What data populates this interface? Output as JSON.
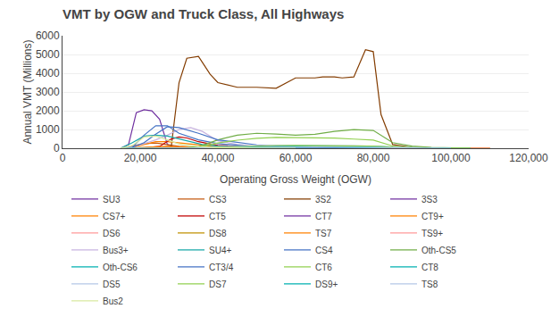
{
  "chart_data": {
    "type": "line",
    "title": "VMT by OGW and Truck Class, All Highways",
    "xlabel": "Operating Gross Weight (OGW)",
    "ylabel": "Annual VMT (Millions)",
    "xlim": [
      0,
      120000
    ],
    "ylim": [
      0,
      6000
    ],
    "xticks": [
      0,
      {
        "value": 20000,
        "label": "20,000"
      },
      {
        "value": 40000,
        "label": "40,000"
      },
      {
        "value": 60000,
        "label": "60,000"
      },
      {
        "value": 80000,
        "label": "80,000"
      },
      {
        "value": 100000,
        "label": "100,000"
      },
      {
        "value": 120000,
        "label": "120,000"
      }
    ],
    "yticks": [
      0,
      1000,
      2000,
      3000,
      4000,
      5000,
      6000
    ],
    "grid": "y",
    "legend": "bottom",
    "series": [
      {
        "name": "SU3",
        "color": "#7030A0",
        "x": [
          15000,
          17000,
          19000,
          21000,
          23000,
          25000,
          27000,
          29000,
          31000,
          35000,
          40000,
          50000
        ],
        "values": [
          0,
          200,
          1900,
          2050,
          2000,
          1550,
          200,
          50,
          20,
          5,
          0,
          0
        ]
      },
      {
        "name": "CS3",
        "color": "#C55A11",
        "x": [
          15000,
          18000,
          21000,
          24000,
          27000,
          30000,
          35000,
          40000,
          50000
        ],
        "values": [
          0,
          120,
          250,
          280,
          200,
          100,
          30,
          10,
          0
        ]
      },
      {
        "name": "3S2",
        "color": "#833C00",
        "x": [
          15000,
          20000,
          25000,
          28000,
          30000,
          32000,
          35000,
          38000,
          40000,
          45000,
          50000,
          55000,
          60000,
          65000,
          67000,
          70000,
          72000,
          75000,
          78000,
          80000,
          82000,
          85000,
          90000,
          95000,
          100000,
          105000,
          110000
        ],
        "values": [
          0,
          0,
          0,
          100,
          3500,
          4800,
          4900,
          3950,
          3500,
          3250,
          3250,
          3200,
          3750,
          3750,
          3800,
          3800,
          3750,
          3800,
          5250,
          5150,
          1800,
          200,
          50,
          20,
          10,
          5,
          0
        ]
      },
      {
        "name": "3S3",
        "color": "#7030A0",
        "x": [
          15000,
          25000,
          35000,
          50000,
          80000,
          90000,
          100000
        ],
        "values": [
          0,
          0,
          5,
          10,
          15,
          5,
          0
        ]
      },
      {
        "name": "CS7+",
        "color": "#FF8000",
        "x": [
          15000,
          18000,
          21000,
          24000,
          27000,
          30000,
          35000,
          40000,
          50000,
          60000,
          70000
        ],
        "values": [
          0,
          50,
          200,
          350,
          350,
          280,
          180,
          80,
          20,
          5,
          0
        ]
      },
      {
        "name": "CT5",
        "color": "#C00000",
        "x": [
          15000,
          20000,
          25000,
          28000,
          30000,
          32000,
          35000,
          40000,
          50000,
          60000,
          70000,
          80000,
          90000,
          100000
        ],
        "values": [
          0,
          0,
          100,
          500,
          600,
          550,
          350,
          150,
          60,
          30,
          15,
          8,
          3,
          0
        ]
      },
      {
        "name": "CT7",
        "color": "#7030A0",
        "x": [
          15000,
          25000,
          35000,
          50000,
          80000,
          90000
        ],
        "values": [
          0,
          0,
          20,
          10,
          5,
          0
        ]
      },
      {
        "name": "CT9+",
        "color": "#FF8000",
        "x": [
          15000,
          25000,
          35000,
          50000,
          80000,
          90000
        ],
        "values": [
          0,
          0,
          20,
          10,
          5,
          0
        ]
      },
      {
        "name": "DS6",
        "color": "#FF9999",
        "x": [
          15000,
          18000,
          21000,
          24000,
          27000,
          30000,
          35000,
          40000,
          50000,
          60000,
          70000,
          80000,
          90000,
          100000,
          110000
        ],
        "values": [
          0,
          20,
          60,
          80,
          70,
          55,
          40,
          30,
          20,
          15,
          10,
          8,
          5,
          2,
          0
        ]
      },
      {
        "name": "DS8",
        "color": "#BF9000",
        "x": [
          15000,
          18000,
          21000,
          24000,
          27000,
          30000,
          35000,
          40000,
          50000,
          60000,
          70000,
          80000,
          90000,
          100000,
          110000
        ],
        "values": [
          0,
          10,
          30,
          50,
          55,
          50,
          35,
          25,
          15,
          10,
          8,
          5,
          3,
          1,
          0
        ]
      },
      {
        "name": "TS7",
        "color": "#FF8000",
        "x": [
          15000,
          18000,
          21000,
          24000,
          27000,
          30000,
          35000,
          40000,
          50000,
          60000,
          70000,
          80000,
          90000,
          100000,
          110000
        ],
        "values": [
          0,
          20,
          60,
          90,
          100,
          80,
          60,
          40,
          25,
          15,
          10,
          5,
          3,
          1,
          0
        ]
      },
      {
        "name": "TS9+",
        "color": "#FF9999",
        "x": [
          15000,
          18000,
          21000,
          24000,
          27000,
          30000,
          35000,
          40000,
          50000,
          60000,
          70000,
          80000,
          90000,
          100000,
          110000
        ],
        "values": [
          0,
          5,
          20,
          35,
          40,
          30,
          20,
          15,
          10,
          8,
          5,
          3,
          2,
          1,
          0
        ]
      },
      {
        "name": "Bus3+",
        "color": "#C8B4E0",
        "x": [
          15000,
          18000,
          21000,
          24000,
          27000,
          30000,
          33000,
          36000,
          40000,
          45000,
          50000,
          60000,
          70000,
          80000,
          90000,
          100000
        ],
        "values": [
          0,
          80,
          250,
          450,
          700,
          1000,
          1100,
          900,
          400,
          200,
          100,
          50,
          20,
          10,
          5,
          0
        ]
      },
      {
        "name": "SU4+",
        "color": "#17A8A8",
        "x": [
          15000,
          18000,
          21000,
          24000,
          27000,
          30000,
          33000,
          36000,
          40000,
          45000,
          50000,
          60000,
          70000,
          80000,
          90000
        ],
        "values": [
          0,
          300,
          650,
          700,
          650,
          500,
          350,
          200,
          120,
          60,
          25,
          12,
          5,
          2,
          0
        ]
      },
      {
        "name": "CS4",
        "color": "#4472C4",
        "x": [
          15000,
          18000,
          21000,
          24000,
          27000,
          30000,
          35000,
          40000,
          50000,
          60000,
          70000,
          80000,
          90000
        ],
        "values": [
          0,
          50,
          700,
          1200,
          1200,
          800,
          450,
          250,
          80,
          30,
          10,
          5,
          0
        ]
      },
      {
        "name": "Oth-CS5",
        "color": "#70AD47",
        "x": [
          15000,
          20000,
          25000,
          30000,
          35000,
          40000,
          45000,
          50000,
          55000,
          60000,
          65000,
          70000,
          75000,
          80000,
          85000,
          90000,
          95000,
          100000,
          105000
        ],
        "values": [
          0,
          0,
          0,
          0,
          80,
          450,
          700,
          800,
          760,
          700,
          750,
          900,
          1000,
          950,
          300,
          120,
          50,
          15,
          0
        ]
      },
      {
        "name": "Oth-CS6",
        "color": "#00B0B0",
        "x": [
          15000,
          20000,
          25000,
          30000,
          35000,
          40000,
          45000,
          50000,
          55000,
          60000,
          65000,
          70000,
          75000,
          80000,
          85000,
          90000,
          95000,
          100000,
          105000
        ],
        "values": [
          0,
          0,
          0,
          0,
          15,
          40,
          70,
          90,
          110,
          120,
          125,
          130,
          120,
          100,
          50,
          25,
          10,
          3,
          0
        ]
      },
      {
        "name": "CT3/4",
        "color": "#4472C4",
        "x": [
          15000,
          18000,
          21000,
          24000,
          27000,
          30000,
          35000,
          40000,
          50000,
          60000,
          70000,
          80000,
          90000
        ],
        "values": [
          0,
          50,
          300,
          750,
          1150,
          1100,
          800,
          450,
          180,
          80,
          30,
          10,
          0
        ]
      },
      {
        "name": "CT6",
        "color": "#92D050",
        "x": [
          15000,
          20000,
          25000,
          30000,
          35000,
          40000,
          45000,
          50000,
          55000,
          60000,
          65000,
          70000,
          75000,
          80000,
          85000,
          90000,
          95000,
          100000,
          105000
        ],
        "values": [
          0,
          0,
          0,
          0,
          60,
          280,
          430,
          530,
          580,
          570,
          550,
          540,
          490,
          440,
          120,
          50,
          20,
          5,
          0
        ]
      },
      {
        "name": "CT8",
        "color": "#00B0B0",
        "x": [
          15000,
          20000,
          25000,
          30000,
          35000,
          40000,
          45000,
          50000,
          55000,
          60000,
          65000,
          70000,
          75000,
          80000,
          85000,
          90000,
          95000,
          100000
        ],
        "values": [
          0,
          0,
          0,
          0,
          15,
          45,
          70,
          90,
          110,
          120,
          125,
          125,
          115,
          95,
          50,
          22,
          8,
          0
        ]
      },
      {
        "name": "DS5",
        "color": "#B4C7E7",
        "x": [
          15000,
          20000,
          25000,
          30000,
          35000,
          40000,
          45000,
          50000,
          55000,
          60000,
          65000,
          70000,
          75000,
          80000,
          85000,
          90000,
          95000,
          100000
        ],
        "values": [
          0,
          0,
          0,
          0,
          25,
          75,
          110,
          140,
          165,
          170,
          165,
          155,
          135,
          105,
          60,
          28,
          8,
          0
        ]
      },
      {
        "name": "DS7",
        "color": "#92D050",
        "x": [
          15000,
          20000,
          25000,
          30000,
          35000,
          40000,
          45000,
          50000,
          55000,
          60000,
          65000,
          70000,
          75000,
          80000,
          85000,
          90000,
          95000,
          100000,
          105000
        ],
        "values": [
          0,
          0,
          0,
          0,
          15,
          55,
          90,
          120,
          145,
          150,
          148,
          140,
          135,
          115,
          58,
          28,
          10,
          3,
          0
        ]
      },
      {
        "name": "DS9+",
        "color": "#00B0B0",
        "x": [
          15000,
          20000,
          25000,
          30000,
          35000,
          40000,
          45000,
          50000,
          55000,
          60000,
          65000,
          70000,
          75000,
          80000,
          85000,
          90000,
          95000,
          100000
        ],
        "values": [
          0,
          0,
          0,
          0,
          8,
          20,
          38,
          52,
          62,
          68,
          68,
          63,
          58,
          48,
          24,
          10,
          4,
          0
        ]
      },
      {
        "name": "TS8",
        "color": "#B4C7E7",
        "x": [
          15000,
          20000,
          25000,
          30000,
          35000,
          40000,
          45000,
          50000,
          55000,
          60000,
          65000,
          70000,
          75000,
          80000,
          85000,
          90000,
          95000,
          100000
        ],
        "values": [
          0,
          0,
          0,
          0,
          8,
          20,
          38,
          52,
          62,
          68,
          68,
          63,
          58,
          48,
          24,
          10,
          4,
          0
        ]
      },
      {
        "name": "Bus2",
        "color": "#D9E9A0",
        "x": [
          15000,
          18000,
          21000,
          24000,
          27000,
          30000,
          35000,
          40000,
          50000,
          60000
        ],
        "values": [
          0,
          150,
          600,
          650,
          450,
          220,
          90,
          35,
          10,
          0
        ]
      }
    ]
  }
}
